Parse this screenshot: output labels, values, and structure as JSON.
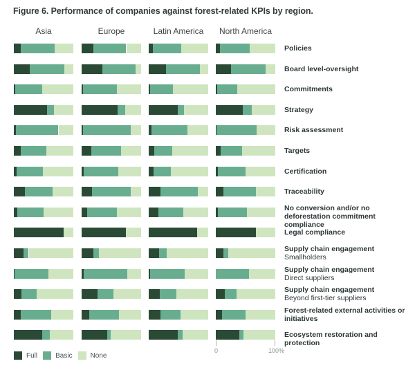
{
  "chart_data": {
    "type": "bar",
    "stacked": true,
    "orientation": "horizontal",
    "title": "Figure 6. Performance of companies against forest-related KPIs by region.",
    "xlim": [
      0,
      100
    ],
    "x_ticks": [
      "0",
      "100%"
    ],
    "legend": {
      "placement": "bottom-left",
      "entries": [
        "Full",
        "Basic",
        "None"
      ]
    },
    "colors": {
      "Full": "#2b4a36",
      "Basic": "#68ad8f",
      "None": "#cfe5bf"
    },
    "regions": [
      "Asia",
      "Europe",
      "Latin America",
      "North America"
    ],
    "categories": [
      {
        "label": "Policies",
        "sub": ""
      },
      {
        "label": "Board level-oversight",
        "sub": ""
      },
      {
        "label": "Commitments",
        "sub": ""
      },
      {
        "label": "Strategy",
        "sub": ""
      },
      {
        "label": "Risk assessment",
        "sub": ""
      },
      {
        "label": "Targets",
        "sub": ""
      },
      {
        "label": "Certification",
        "sub": ""
      },
      {
        "label": "Traceability",
        "sub": ""
      },
      {
        "label": "No conversion and/or no deforestation commitment compliance",
        "sub": ""
      },
      {
        "label": "Legal compliance",
        "sub": ""
      },
      {
        "label": "Supply chain engagement",
        "sub": "Smallholders"
      },
      {
        "label": "Supply chain engagement",
        "sub": "Direct suppliers"
      },
      {
        "label": "Supply chain engagement",
        "sub": "Beyond first-tier suppliers"
      },
      {
        "label": "Forest-related external activities or initiatives",
        "sub": ""
      },
      {
        "label": "Ecosystem restoration and protection",
        "sub": ""
      }
    ],
    "series": [
      {
        "region": "Asia",
        "full": [
          12,
          27,
          2,
          56,
          3,
          12,
          5,
          19,
          6,
          84,
          16,
          1,
          13,
          12,
          48
        ],
        "basic": [
          57,
          58,
          46,
          11,
          72,
          43,
          44,
          46,
          44,
          0,
          9,
          57,
          25,
          51,
          12
        ]
      },
      {
        "region": "Europe",
        "full": [
          20,
          35,
          2,
          61,
          2,
          16,
          4,
          18,
          9,
          74,
          20,
          3,
          27,
          13,
          43
        ],
        "basic": [
          55,
          56,
          57,
          12,
          80,
          50,
          58,
          64,
          50,
          0,
          9,
          74,
          27,
          50,
          6
        ]
      },
      {
        "region": "Latin America",
        "full": [
          7,
          29,
          2,
          49,
          5,
          9,
          8,
          20,
          16,
          81,
          18,
          2,
          19,
          20,
          49
        ],
        "basic": [
          48,
          57,
          39,
          10,
          60,
          31,
          29,
          62,
          42,
          0,
          12,
          59,
          28,
          33,
          8
        ]
      },
      {
        "region": "North America",
        "full": [
          7,
          25,
          2,
          45,
          1,
          8,
          3,
          13,
          4,
          68,
          13,
          0,
          15,
          11,
          39
        ],
        "basic": [
          50,
          59,
          34,
          16,
          68,
          36,
          47,
          54,
          48,
          0,
          8,
          56,
          20,
          39,
          8
        ]
      }
    ]
  }
}
